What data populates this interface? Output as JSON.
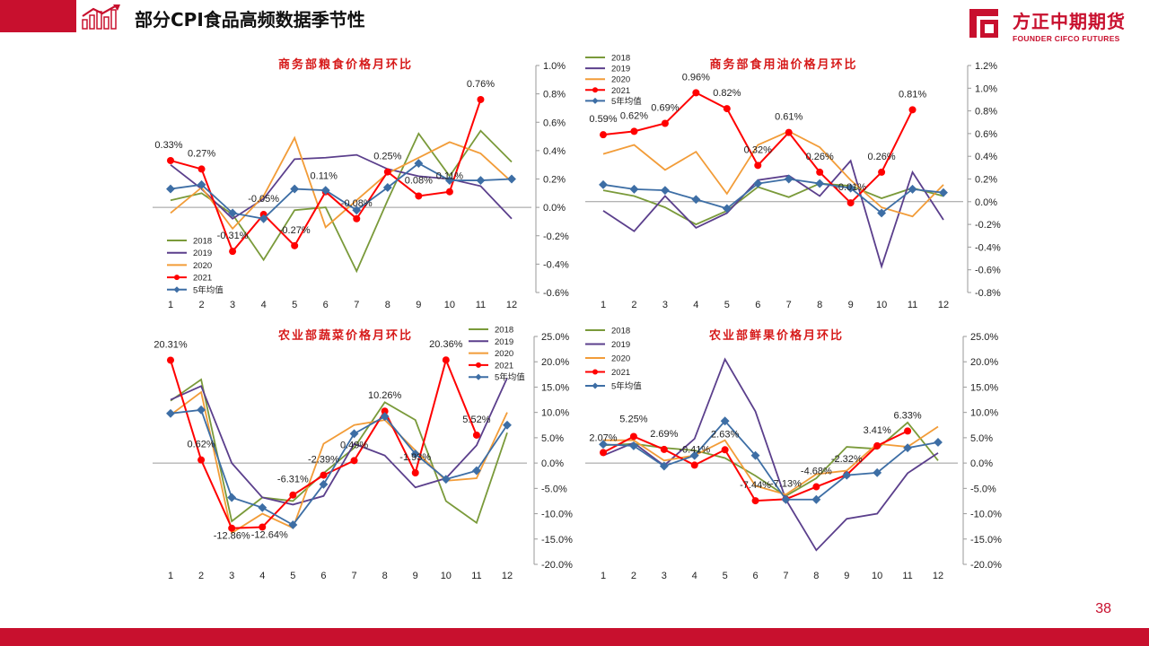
{
  "header": {
    "title": "部分CPI食品高频数据季节性"
  },
  "brand": {
    "name_cn": "方正中期期货",
    "name_en": "FOUNDER CIFCO FUTURES"
  },
  "footer": {
    "page_number": "38"
  },
  "colors": {
    "accent": "#c8102e",
    "s2018": "#7a9a3a",
    "s2019": "#5b3f8c",
    "s2020": "#f29c38",
    "s2021": "#ff0000",
    "avg": "#3d6ea5"
  },
  "chart_data": [
    {
      "type": "line",
      "title": "商务部粮食价格月环比",
      "x": [
        1,
        2,
        3,
        4,
        5,
        6,
        7,
        8,
        9,
        10,
        11,
        12
      ],
      "ylim": [
        -0.6,
        1.0
      ],
      "yticks": [
        -0.6,
        -0.4,
        -0.2,
        0.0,
        0.2,
        0.4,
        0.6,
        0.8,
        1.0
      ],
      "ytick_decimals": 1,
      "legend_position": "bottom-left",
      "series": [
        {
          "name": "2018",
          "values": [
            0.05,
            0.1,
            -0.05,
            -0.37,
            -0.02,
            0.0,
            -0.45,
            0.05,
            0.52,
            0.22,
            0.54,
            0.32
          ]
        },
        {
          "name": "2019",
          "values": [
            0.3,
            0.13,
            -0.08,
            0.06,
            0.34,
            0.35,
            0.37,
            0.27,
            0.22,
            0.2,
            0.15,
            -0.08
          ]
        },
        {
          "name": "2020",
          "values": [
            -0.04,
            0.14,
            -0.15,
            0.08,
            0.49,
            -0.14,
            0.05,
            0.24,
            0.35,
            0.46,
            0.38,
            0.18
          ]
        },
        {
          "name": "2021",
          "values": [
            0.33,
            0.27,
            -0.31,
            -0.05,
            -0.27,
            0.11,
            -0.08,
            0.25,
            0.08,
            0.11,
            0.76,
            null
          ]
        },
        {
          "name": "5年均值",
          "values": [
            0.13,
            0.16,
            -0.04,
            -0.08,
            0.13,
            0.12,
            -0.02,
            0.14,
            0.31,
            0.19,
            0.19,
            0.2
          ]
        }
      ],
      "labels": {
        "values": [
          "0.33%",
          "0.27%",
          "-0.31%",
          "-0.05%",
          "-0.27%",
          "0.11%",
          "-0.08%",
          "0.25%",
          "0.08%",
          "0.11%",
          "0.76%"
        ]
      }
    },
    {
      "type": "line",
      "title": "商务部食用油价格月环比",
      "x": [
        1,
        2,
        3,
        4,
        5,
        6,
        7,
        8,
        9,
        10,
        11,
        12
      ],
      "ylim": [
        -0.8,
        1.2
      ],
      "yticks": [
        -0.8,
        -0.6,
        -0.4,
        -0.2,
        0.0,
        0.2,
        0.4,
        0.6,
        0.8,
        1.0,
        1.2
      ],
      "ytick_decimals": 1,
      "legend_position": "top-left",
      "series": [
        {
          "name": "2018",
          "values": [
            0.1,
            0.05,
            -0.05,
            -0.2,
            -0.08,
            0.13,
            0.04,
            0.16,
            0.14,
            0.03,
            0.12,
            0.05
          ]
        },
        {
          "name": "2019",
          "values": [
            -0.08,
            -0.26,
            0.05,
            -0.23,
            -0.1,
            0.19,
            0.23,
            0.05,
            0.36,
            -0.57,
            0.26,
            -0.16
          ]
        },
        {
          "name": "2020",
          "values": [
            0.42,
            0.5,
            0.28,
            0.44,
            0.07,
            0.5,
            0.62,
            0.48,
            0.19,
            -0.05,
            -0.13,
            0.15
          ]
        },
        {
          "name": "2021",
          "values": [
            0.59,
            0.62,
            0.69,
            0.96,
            0.82,
            0.32,
            0.61,
            0.26,
            -0.01,
            0.26,
            0.81,
            null
          ]
        },
        {
          "name": "5年均值",
          "values": [
            0.15,
            0.11,
            0.1,
            0.02,
            -0.06,
            0.16,
            0.2,
            0.16,
            0.12,
            -0.1,
            0.11,
            0.08
          ]
        }
      ],
      "labels": {
        "values": [
          "0.59%",
          "0.62%",
          "0.69%",
          "0.96%",
          "0.82%",
          "0.32%",
          "0.61%",
          "0.26%",
          "-0.01%",
          "0.26%",
          "0.81%"
        ]
      }
    },
    {
      "type": "line",
      "title": "农业部蔬菜价格月环比",
      "x": [
        1,
        2,
        3,
        4,
        5,
        6,
        7,
        8,
        9,
        10,
        11,
        12
      ],
      "ylim": [
        -20,
        25
      ],
      "yticks": [
        -20,
        -15,
        -10,
        -5,
        0,
        5,
        10,
        15,
        20,
        25
      ],
      "ytick_decimals": 1,
      "legend_position": "top-right",
      "series": [
        {
          "name": "2018",
          "values": [
            12.3,
            16.5,
            -11.5,
            -6.8,
            -7.5,
            -2.0,
            3.0,
            12.0,
            8.5,
            -7.5,
            -11.8,
            6.0
          ]
        },
        {
          "name": "2019",
          "values": [
            12.5,
            15.2,
            0.0,
            -6.8,
            -8.2,
            -6.5,
            3.8,
            1.5,
            -4.8,
            -3.0,
            3.5,
            16.8
          ]
        },
        {
          "name": "2020",
          "values": [
            9.5,
            14.0,
            -13.8,
            -10.0,
            -12.8,
            3.8,
            7.5,
            8.5,
            2.5,
            -3.5,
            -3.0,
            10.0
          ]
        },
        {
          "name": "2021",
          "values": [
            20.31,
            0.62,
            -12.86,
            -12.64,
            -6.31,
            -2.39,
            0.49,
            10.26,
            -1.93,
            20.36,
            5.52,
            null
          ]
        },
        {
          "name": "5年均值",
          "values": [
            9.8,
            10.5,
            -6.8,
            -8.8,
            -12.2,
            -4.2,
            5.8,
            9.2,
            1.8,
            -3.2,
            -1.5,
            7.5
          ]
        }
      ],
      "labels": {
        "values": [
          "20.31%",
          "0.62%",
          "-12.86%",
          "-12.64%",
          "-6.31%",
          "-2.39%",
          "0.49%",
          "10.26%",
          "-1.93%",
          "20.36%",
          "5.52%"
        ]
      }
    },
    {
      "type": "line",
      "title": "农业部鲜果价格月环比",
      "x": [
        1,
        2,
        3,
        4,
        5,
        6,
        7,
        8,
        9,
        10,
        11,
        12
      ],
      "ylim": [
        -20,
        25
      ],
      "yticks": [
        -20,
        -15,
        -10,
        -5,
        0,
        5,
        10,
        15,
        20,
        25
      ],
      "ytick_decimals": 1,
      "legend_position": "top-left",
      "series": [
        {
          "name": "2018",
          "values": [
            3.5,
            3.8,
            3.0,
            2.5,
            1.0,
            -2.5,
            -6.5,
            -3.0,
            3.2,
            2.8,
            8.0,
            0.5
          ]
        },
        {
          "name": "2019",
          "values": [
            1.5,
            4.0,
            -0.5,
            4.8,
            20.5,
            10.2,
            -7.2,
            -17.2,
            -11.0,
            -10.0,
            -2.0,
            2.0
          ]
        },
        {
          "name": "2020",
          "values": [
            4.5,
            4.5,
            0.5,
            1.5,
            4.5,
            -4.5,
            -6.2,
            -2.2,
            -1.5,
            3.8,
            3.2,
            7.2
          ]
        },
        {
          "name": "2021",
          "values": [
            2.07,
            5.25,
            2.69,
            -0.41,
            2.63,
            -7.44,
            -7.13,
            -4.68,
            -2.32,
            3.41,
            6.33,
            null
          ]
        },
        {
          "name": "5年均值",
          "values": [
            3.7,
            3.4,
            -0.6,
            1.5,
            8.3,
            1.5,
            -7.2,
            -7.2,
            -2.4,
            -1.9,
            3.0,
            4.1
          ]
        }
      ],
      "labels": {
        "values": [
          "2.07%",
          "5.25%",
          "2.69%",
          "-0.41%",
          "2.63%",
          "-7.44%",
          "-7.13%",
          "-4.68%",
          "-2.32%",
          "3.41%",
          "6.33%"
        ]
      }
    }
  ]
}
